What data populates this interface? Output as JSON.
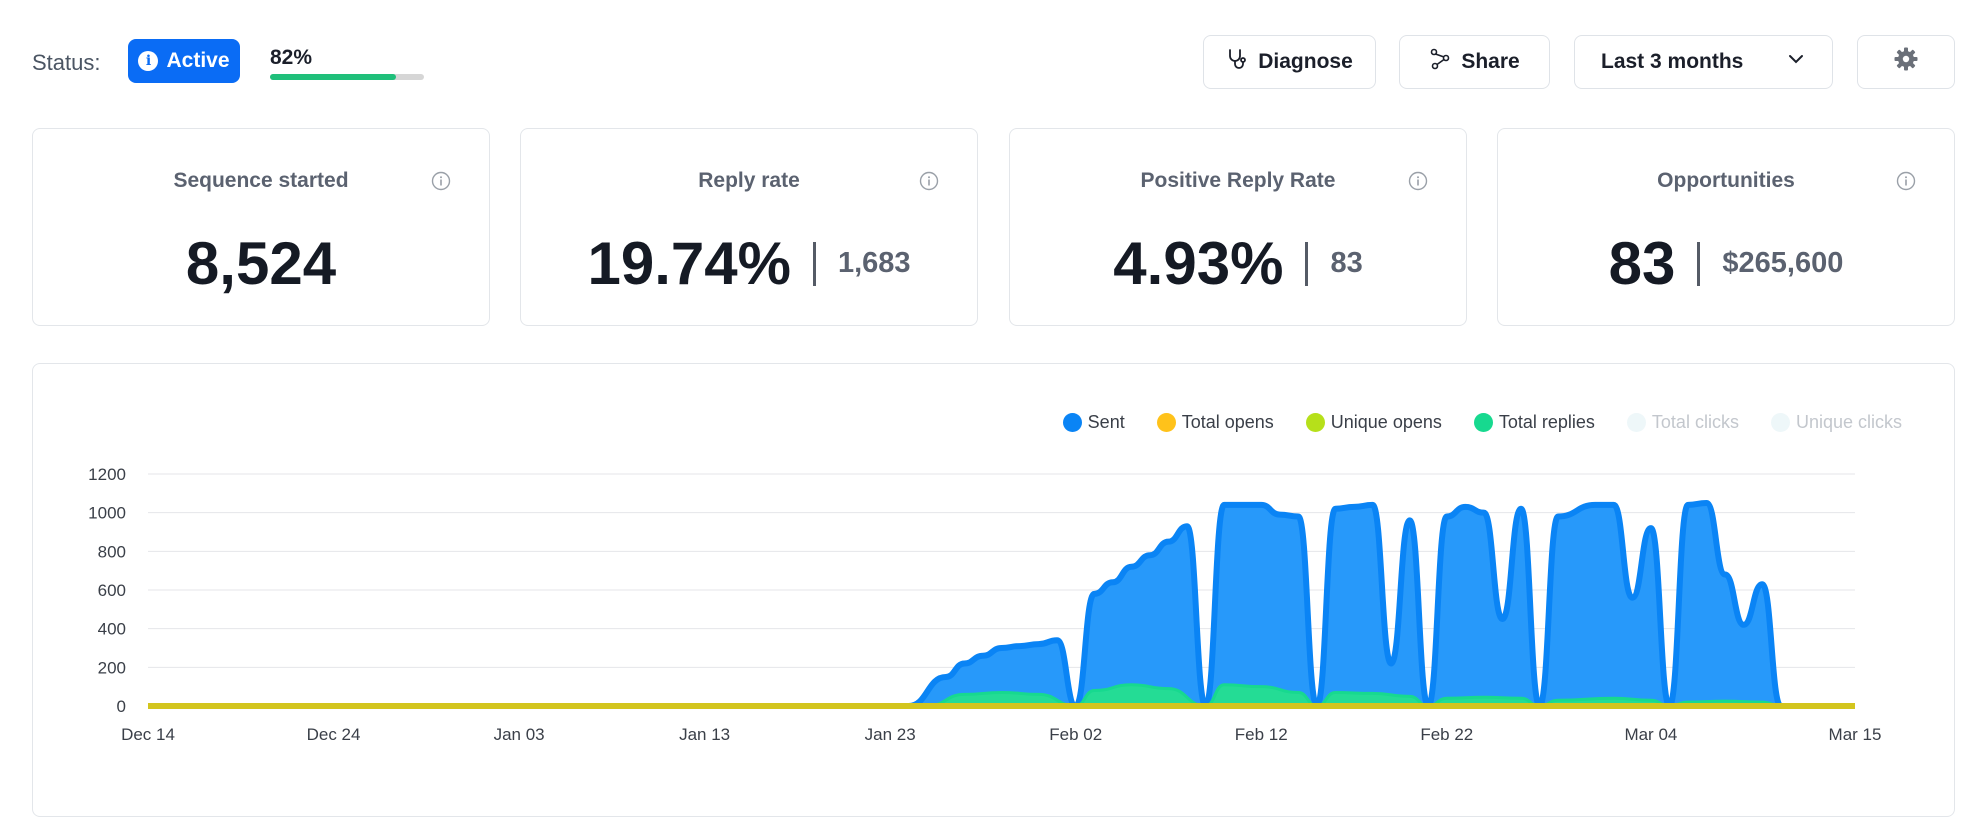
{
  "status": {
    "label": "Status:",
    "badge": "Active",
    "badge_icon": "info-icon",
    "progress_text": "82%",
    "progress_fraction": 0.82
  },
  "toolbar": {
    "diagnose_label": "Diagnose",
    "diagnose_icon": "stethoscope-icon",
    "share_label": "Share",
    "share_icon": "share-icon",
    "range_label": "Last 3 months",
    "range_icon": "chevron-down-icon",
    "settings_icon": "gear-icon"
  },
  "cards": [
    {
      "title": "Sequence started",
      "value": "8,524",
      "secondary": ""
    },
    {
      "title": "Reply rate",
      "value": "19.74%",
      "secondary": "1,683"
    },
    {
      "title": "Positive Reply Rate",
      "value": "4.93%",
      "secondary": "83"
    },
    {
      "title": "Opportunities",
      "value": "83",
      "secondary": "$265,600"
    }
  ],
  "colors": {
    "sent": "#0a84f5",
    "total_opens": "#ffc21a",
    "unique_opens": "#b6e01a",
    "total_replies": "#17d98f",
    "total_clicks": "#eef7f9",
    "unique_clicks": "#eef7f9"
  },
  "chart_data": {
    "type": "area",
    "legend_position": "top-right",
    "legend": [
      {
        "name": "Sent",
        "color": "#0a84f5",
        "active": true
      },
      {
        "name": "Total opens",
        "color": "#ffc21a",
        "active": true
      },
      {
        "name": "Unique opens",
        "color": "#b6e01a",
        "active": true
      },
      {
        "name": "Total replies",
        "color": "#17d98f",
        "active": true
      },
      {
        "name": "Total clicks",
        "color": "#eef7f9",
        "active": false
      },
      {
        "name": "Unique clicks",
        "color": "#eef7f9",
        "active": false
      }
    ],
    "x_ticks": [
      "Dec 14",
      "Dec 24",
      "Jan 03",
      "Jan 13",
      "Jan 23",
      "Feb 02",
      "Feb 12",
      "Feb 22",
      "Mar 04",
      "Mar 15"
    ],
    "x_range": [
      "Dec 14",
      "Mar 15"
    ],
    "y_ticks": [
      0,
      200,
      400,
      600,
      800,
      1000,
      1200
    ],
    "ylim": [
      0,
      1200
    ],
    "grid": true,
    "series": [
      {
        "name": "Sent",
        "points": [
          [
            "Dec 14",
            0
          ],
          [
            "Jan 24",
            0
          ],
          [
            "Jan 26",
            150
          ],
          [
            "Jan 27",
            220
          ],
          [
            "Jan 28",
            260
          ],
          [
            "Jan 29",
            300
          ],
          [
            "Jan 30",
            310
          ],
          [
            "Jan 31",
            320
          ],
          [
            "Feb 01",
            340
          ],
          [
            "Feb 02",
            0
          ],
          [
            "Feb 03",
            580
          ],
          [
            "Feb 04",
            640
          ],
          [
            "Feb 05",
            720
          ],
          [
            "Feb 06",
            780
          ],
          [
            "Feb 07",
            850
          ],
          [
            "Feb 08",
            930
          ],
          [
            "Feb 09",
            0
          ],
          [
            "Feb 10",
            1040
          ],
          [
            "Feb 11",
            1040
          ],
          [
            "Feb 12",
            1040
          ],
          [
            "Feb 13",
            990
          ],
          [
            "Feb 14",
            980
          ],
          [
            "Feb 15",
            0
          ],
          [
            "Feb 16",
            1020
          ],
          [
            "Feb 17",
            1030
          ],
          [
            "Feb 18",
            1040
          ],
          [
            "Feb 19",
            220
          ],
          [
            "Feb 20",
            960
          ],
          [
            "Feb 21",
            0
          ],
          [
            "Feb 22",
            980
          ],
          [
            "Feb 23",
            1030
          ],
          [
            "Feb 24",
            1000
          ],
          [
            "Feb 25",
            450
          ],
          [
            "Feb 26",
            1020
          ],
          [
            "Feb 27",
            0
          ],
          [
            "Feb 28",
            980
          ],
          [
            "Mar 01",
            1040
          ],
          [
            "Mar 02",
            1040
          ],
          [
            "Mar 03",
            560
          ],
          [
            "Mar 04",
            920
          ],
          [
            "Mar 05",
            0
          ],
          [
            "Mar 06",
            1040
          ],
          [
            "Mar 07",
            1050
          ],
          [
            "Mar 08",
            680
          ],
          [
            "Mar 09",
            420
          ],
          [
            "Mar 10",
            630
          ],
          [
            "Mar 11",
            0
          ],
          [
            "Mar 15",
            0
          ]
        ]
      },
      {
        "name": "Total replies",
        "points": [
          [
            "Dec 14",
            0
          ],
          [
            "Jan 25",
            0
          ],
          [
            "Jan 27",
            60
          ],
          [
            "Jan 29",
            70
          ],
          [
            "Jan 31",
            60
          ],
          [
            "Feb 02",
            0
          ],
          [
            "Feb 03",
            80
          ],
          [
            "Feb 05",
            110
          ],
          [
            "Feb 07",
            90
          ],
          [
            "Feb 09",
            0
          ],
          [
            "Feb 10",
            110
          ],
          [
            "Feb 12",
            100
          ],
          [
            "Feb 14",
            70
          ],
          [
            "Feb 15",
            0
          ],
          [
            "Feb 16",
            70
          ],
          [
            "Feb 18",
            65
          ],
          [
            "Feb 20",
            50
          ],
          [
            "Feb 21",
            0
          ],
          [
            "Feb 22",
            40
          ],
          [
            "Feb 24",
            45
          ],
          [
            "Feb 26",
            40
          ],
          [
            "Feb 27",
            0
          ],
          [
            "Feb 28",
            30
          ],
          [
            "Mar 02",
            40
          ],
          [
            "Mar 04",
            30
          ],
          [
            "Mar 05",
            0
          ],
          [
            "Mar 06",
            20
          ],
          [
            "Mar 08",
            25
          ],
          [
            "Mar 10",
            20
          ],
          [
            "Mar 11",
            0
          ],
          [
            "Mar 15",
            0
          ]
        ]
      },
      {
        "name": "Total opens",
        "points": [
          [
            "Dec 14",
            0
          ],
          [
            "Mar 15",
            0
          ]
        ]
      },
      {
        "name": "Unique opens",
        "points": [
          [
            "Dec 14",
            0
          ],
          [
            "Mar 15",
            0
          ]
        ]
      }
    ]
  }
}
